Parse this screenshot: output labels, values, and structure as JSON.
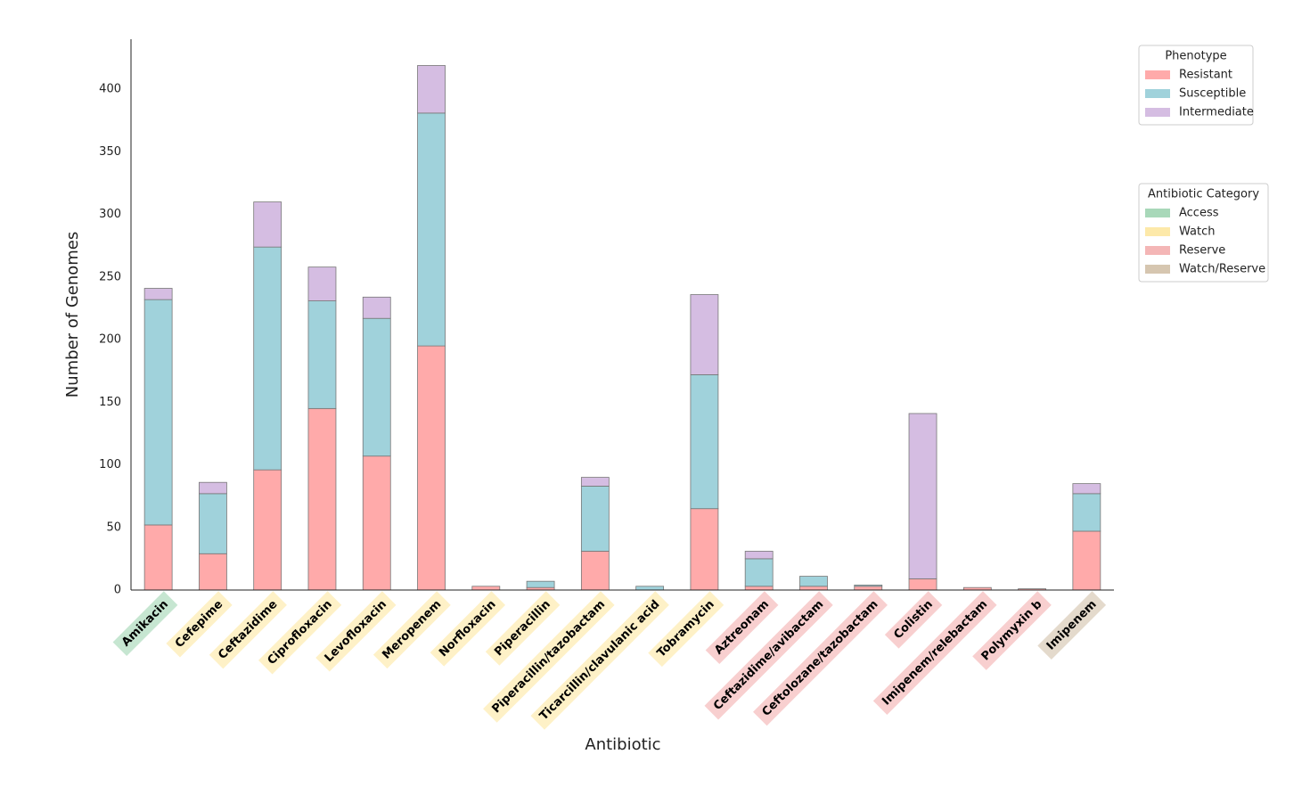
{
  "chart_data": {
    "type": "stacked_bar",
    "x_label": "Antibiotic",
    "y_label": "Number of Genomes",
    "categories": [
      "Amikacin",
      "Cefepime",
      "Ceftazidime",
      "Ciprofloxacin",
      "Levofloxacin",
      "Meropenem",
      "Norfloxacin",
      "Piperacillin",
      "Piperacillin/tazobactam",
      "Ticarcillin/clavulanic acid",
      "Tobramycin",
      "Aztreonam",
      "Ceftazidime/avibactam",
      "Ceftolozane/tazobactam",
      "Colistin",
      "Imipenem/relebactam",
      "Polymyxin b",
      "Imipenem"
    ],
    "series": [
      {
        "name": "Resistant",
        "color": "#ffaaaa",
        "values": [
          52,
          29,
          96,
          145,
          107,
          195,
          3,
          2,
          31,
          0,
          65,
          3,
          3,
          3,
          9,
          2,
          1,
          47
        ]
      },
      {
        "name": "Susceptible",
        "color": "#a0d2db",
        "values": [
          180,
          48,
          178,
          86,
          110,
          186,
          0,
          5,
          52,
          3,
          107,
          22,
          8,
          1,
          0,
          0,
          0,
          30
        ]
      },
      {
        "name": "Intermediate",
        "color": "#d5bde2",
        "values": [
          9,
          9,
          36,
          27,
          17,
          38,
          0,
          0,
          7,
          0,
          64,
          6,
          0,
          0,
          132,
          0,
          0,
          8
        ]
      }
    ],
    "legend_title": "Phenotype",
    "group_legend_title": "Antibiotic Category",
    "groups": [
      {
        "name": "Access",
        "color": "#a8d8b9"
      },
      {
        "name": "Watch",
        "color": "#fde9a9"
      },
      {
        "name": "Reserve",
        "color": "#f4b6b6"
      },
      {
        "name": "Watch/Reserve",
        "color": "#d6c6b0"
      }
    ],
    "category_groups": [
      "Access",
      "Watch",
      "Watch",
      "Watch",
      "Watch",
      "Watch",
      "Watch",
      "Watch",
      "Watch",
      "Watch",
      "Watch",
      "Reserve",
      "Reserve",
      "Reserve",
      "Reserve",
      "Reserve",
      "Reserve",
      "Watch/Reserve"
    ],
    "ylim": [
      0,
      440
    ],
    "yticks": [
      0,
      50,
      100,
      150,
      200,
      250,
      300,
      350,
      400
    ],
    "grid": false
  }
}
